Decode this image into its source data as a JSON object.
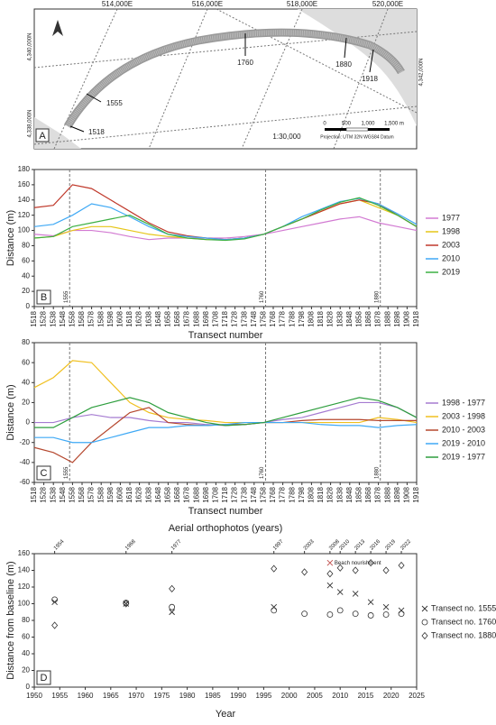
{
  "map": {
    "panel": "A",
    "eastings": [
      "514,000E",
      "516,000E",
      "518,000E",
      "520,000E"
    ],
    "northings": [
      "4,340,000N",
      "4,338,000N",
      "4,342,000N"
    ],
    "transects": [
      "1760",
      "1880",
      "1918",
      "1555",
      "1518"
    ],
    "scale": "1:30,000",
    "scale_bar": [
      "0",
      "500",
      "1,000",
      "1,500 m"
    ],
    "projection": "Projection: UTM 32N WGS84 Datum"
  },
  "chart_data": [
    {
      "type": "line",
      "panel": "B",
      "xlabel": "Transect number",
      "ylabel": "Distance (m)",
      "x": [
        1518,
        1538,
        1558,
        1578,
        1598,
        1618,
        1638,
        1658,
        1678,
        1698,
        1718,
        1738,
        1758,
        1778,
        1798,
        1818,
        1838,
        1858,
        1878,
        1898,
        1918
      ],
      "xlim": [
        1518,
        1918
      ],
      "xticks": [
        1518,
        1528,
        1538,
        1548,
        1558,
        1568,
        1578,
        1588,
        1598,
        1608,
        1618,
        1628,
        1638,
        1648,
        1658,
        1668,
        1678,
        1688,
        1698,
        1708,
        1718,
        1728,
        1738,
        1748,
        1758,
        1768,
        1778,
        1788,
        1798,
        1808,
        1818,
        1828,
        1838,
        1848,
        1858,
        1868,
        1878,
        1888,
        1898,
        1908,
        1918
      ],
      "ylim": [
        0,
        180
      ],
      "yticks": [
        0,
        20,
        40,
        60,
        80,
        100,
        120,
        140,
        160,
        180
      ],
      "vlines": [
        1555,
        1760,
        1880
      ],
      "series": [
        {
          "name": "1977",
          "color": "#d27ad2",
          "values": [
            95,
            93,
            100,
            100,
            97,
            92,
            88,
            90,
            90,
            90,
            90,
            92,
            95,
            100,
            105,
            110,
            115,
            118,
            110,
            105,
            100
          ]
        },
        {
          "name": "1998",
          "color": "#e6c619",
          "values": [
            90,
            92,
            100,
            105,
            105,
            100,
            95,
            92,
            90,
            88,
            88,
            90,
            95,
            105,
            115,
            125,
            135,
            140,
            130,
            120,
            105
          ]
        },
        {
          "name": "2003",
          "color": "#c0392b",
          "values": [
            130,
            133,
            160,
            155,
            140,
            125,
            110,
            98,
            93,
            90,
            88,
            90,
            95,
            105,
            115,
            125,
            135,
            140,
            135,
            120,
            105
          ]
        },
        {
          "name": "2010",
          "color": "#3fa9f5",
          "values": [
            105,
            108,
            120,
            135,
            130,
            118,
            105,
            95,
            92,
            90,
            88,
            90,
            95,
            105,
            118,
            128,
            138,
            142,
            135,
            122,
            108
          ]
        },
        {
          "name": "2019",
          "color": "#3cb043",
          "values": [
            90,
            92,
            105,
            110,
            115,
            120,
            108,
            95,
            90,
            88,
            87,
            89,
            95,
            105,
            115,
            127,
            137,
            143,
            133,
            120,
            105
          ]
        }
      ]
    },
    {
      "type": "line",
      "panel": "C",
      "xlabel": "Transect number",
      "ylabel": "Distance (m)",
      "x": [
        1518,
        1538,
        1558,
        1578,
        1598,
        1618,
        1638,
        1658,
        1678,
        1698,
        1718,
        1738,
        1758,
        1778,
        1798,
        1818,
        1838,
        1858,
        1878,
        1898,
        1918
      ],
      "xlim": [
        1518,
        1918
      ],
      "xticks": [
        1518,
        1528,
        1538,
        1548,
        1558,
        1568,
        1578,
        1588,
        1598,
        1608,
        1618,
        1628,
        1638,
        1648,
        1658,
        1668,
        1678,
        1688,
        1698,
        1708,
        1718,
        1728,
        1738,
        1748,
        1758,
        1768,
        1778,
        1788,
        1798,
        1808,
        1818,
        1828,
        1838,
        1848,
        1858,
        1868,
        1878,
        1888,
        1898,
        1908,
        1918
      ],
      "ylim": [
        -60,
        80
      ],
      "yticks": [
        -60,
        -40,
        -20,
        0,
        20,
        40,
        60,
        80
      ],
      "vlines": [
        1555,
        1760,
        1880
      ],
      "series": [
        {
          "name": "1998 - 1977",
          "color": "#a57bd1",
          "values": [
            0,
            0,
            5,
            8,
            5,
            5,
            2,
            0,
            0,
            -2,
            -3,
            -2,
            0,
            3,
            5,
            10,
            15,
            20,
            20,
            15,
            5
          ]
        },
        {
          "name": "2003 - 1998",
          "color": "#f0c020",
          "values": [
            35,
            45,
            62,
            60,
            40,
            20,
            10,
            5,
            3,
            2,
            0,
            0,
            0,
            0,
            0,
            0,
            0,
            0,
            5,
            3,
            0
          ]
        },
        {
          "name": "2010 - 2003",
          "color": "#b5482f",
          "values": [
            -25,
            -30,
            -40,
            -20,
            -5,
            10,
            15,
            0,
            -2,
            -3,
            -2,
            -2,
            0,
            0,
            2,
            3,
            3,
            3,
            2,
            2,
            2
          ]
        },
        {
          "name": "2019 - 2010",
          "color": "#3fa9f5",
          "values": [
            -15,
            -15,
            -20,
            -20,
            -15,
            -10,
            -5,
            -5,
            -3,
            -3,
            -2,
            0,
            0,
            0,
            0,
            -2,
            -3,
            -3,
            -5,
            -3,
            -2
          ]
        },
        {
          "name": "2019 - 1977",
          "color": "#2e9e3e",
          "values": [
            -5,
            -5,
            5,
            15,
            20,
            25,
            20,
            10,
            5,
            0,
            -3,
            -2,
            0,
            5,
            10,
            15,
            20,
            25,
            22,
            15,
            5
          ]
        }
      ]
    },
    {
      "type": "scatter",
      "panel": "D",
      "xlabel": "Year",
      "ylabel": "Distance from baseline (m)",
      "top_axis_label": "Aerial orthophotos  (years)",
      "x2ticks": [
        1954,
        1968,
        1977,
        1997,
        2003,
        2008,
        2010,
        2013,
        2016,
        2019,
        2022
      ],
      "xlim": [
        1950,
        2025
      ],
      "xticks": [
        1950,
        1955,
        1960,
        1965,
        1970,
        1975,
        1980,
        1985,
        1990,
        1995,
        2000,
        2005,
        2010,
        2015,
        2020,
        2025
      ],
      "ylim": [
        0,
        160
      ],
      "yticks": [
        0,
        20,
        40,
        60,
        80,
        100,
        120,
        140,
        160
      ],
      "annotations": [
        {
          "text": "Beach nourishment",
          "x": 2008,
          "y": 149,
          "color": "#c0504d"
        }
      ],
      "series": [
        {
          "name": "Transect no. 1555",
          "marker": "x",
          "color": "#333333",
          "x": [
            1954,
            1968,
            1977,
            1997,
            2008,
            2010,
            2013,
            2016,
            2019,
            2022
          ],
          "values": [
            102,
            100,
            90,
            96,
            122,
            114,
            112,
            102,
            96,
            92
          ]
        },
        {
          "name": "Transect no. 1760",
          "marker": "circle",
          "color": "#333333",
          "x": [
            1954,
            1968,
            1977,
            1997,
            2003,
            2008,
            2010,
            2013,
            2016,
            2019,
            2022
          ],
          "values": [
            105,
            101,
            96,
            92,
            88,
            87,
            92,
            88,
            86,
            87,
            88
          ]
        },
        {
          "name": "Transect no. 1880",
          "marker": "diamond",
          "color": "#333333",
          "x": [
            1954,
            1968,
            1977,
            1997,
            2003,
            2008,
            2010,
            2013,
            2016,
            2019,
            2022
          ],
          "values": [
            74,
            100,
            118,
            142,
            138,
            136,
            143,
            140,
            149,
            140,
            146
          ]
        }
      ]
    }
  ]
}
